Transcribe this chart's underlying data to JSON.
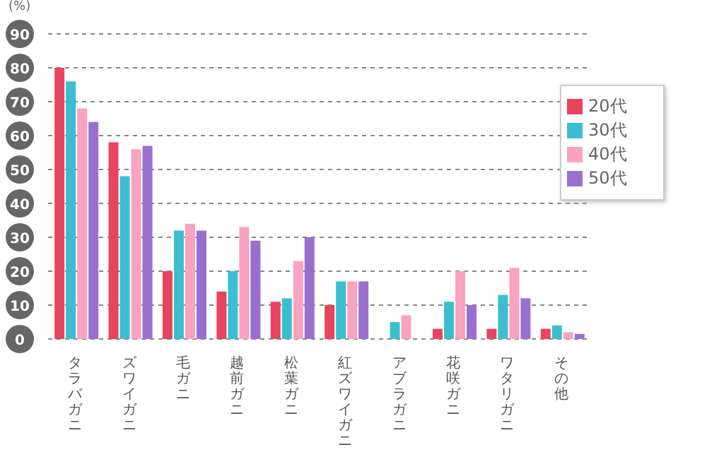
{
  "chart_data": {
    "type": "bar",
    "ylabel": "(%)",
    "categories": [
      "タラバガニ",
      "ズワイガニ",
      "毛ガニ",
      "越前ガニ",
      "松葉ガニ",
      "紅ズワイガニ",
      "アブラガニ",
      "花咲ガニ",
      "ワタリガニ",
      "その他"
    ],
    "series": [
      {
        "name": "20代",
        "color": "#e8435f",
        "values": [
          80,
          58,
          20,
          14,
          11,
          10,
          0,
          3,
          3,
          3
        ]
      },
      {
        "name": "30代",
        "color": "#3bbfd0",
        "values": [
          76,
          48,
          32,
          20,
          12,
          17,
          5,
          11,
          13,
          4
        ]
      },
      {
        "name": "40代",
        "color": "#f9a3c0",
        "values": [
          68,
          56,
          34,
          33,
          23,
          17,
          7,
          20,
          21,
          2
        ]
      },
      {
        "name": "50代",
        "color": "#9b6fd0",
        "values": [
          64,
          57,
          32,
          29,
          30,
          17,
          0,
          10,
          12,
          1.5
        ]
      }
    ],
    "ylim": [
      0,
      90
    ],
    "yticks": [
      0,
      10,
      20,
      30,
      40,
      50,
      60,
      70,
      80,
      90
    ],
    "grid": "y",
    "legend": "top right"
  }
}
